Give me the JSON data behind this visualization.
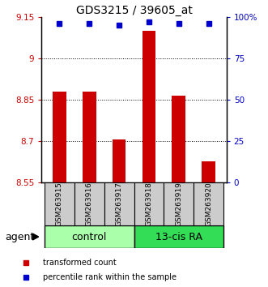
{
  "title": "GDS3215 / 39605_at",
  "samples": [
    "GSM263915",
    "GSM263916",
    "GSM263917",
    "GSM263918",
    "GSM263919",
    "GSM263920"
  ],
  "bar_values": [
    8.88,
    8.88,
    8.705,
    9.1,
    8.865,
    8.625
  ],
  "percentile_values": [
    96,
    96,
    95,
    97,
    96,
    96
  ],
  "bar_color": "#cc0000",
  "dot_color": "#0000cc",
  "ylim_left": [
    8.55,
    9.15
  ],
  "ylim_right": [
    0,
    100
  ],
  "yticks_left": [
    8.55,
    8.7,
    8.85,
    9.0,
    9.15
  ],
  "yticks_right": [
    0,
    25,
    50,
    75,
    100
  ],
  "ytick_labels_left": [
    "8.55",
    "8.7",
    "8.85",
    "9",
    "9.15"
  ],
  "ytick_labels_right": [
    "0",
    "25",
    "50",
    "75",
    "100%"
  ],
  "grid_lines": [
    9.0,
    8.85,
    8.7
  ],
  "group_control": [
    0,
    1,
    2
  ],
  "group_treatment": [
    3,
    4,
    5
  ],
  "group_label_control": "control",
  "group_label_treatment": "13-cis RA",
  "agent_label": "agent",
  "legend_bar_label": "transformed count",
  "legend_dot_label": "percentile rank within the sample",
  "bar_width": 0.45,
  "sample_box_color": "#cccccc",
  "control_box_color": "#aaffaa",
  "treatment_box_color": "#33dd55",
  "background_color": "#ffffff"
}
